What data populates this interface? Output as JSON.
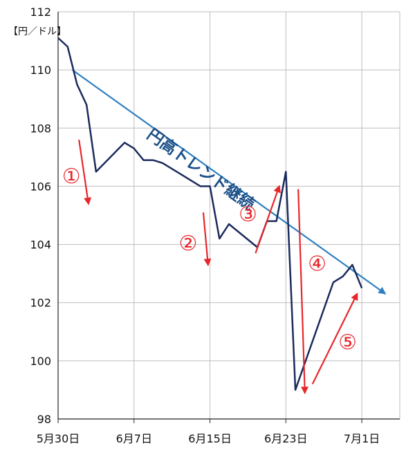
{
  "chart_data": {
    "type": "line",
    "unit_label": "【円／ドル】",
    "ylim": [
      98,
      112
    ],
    "y_ticks": [
      98,
      100,
      102,
      104,
      106,
      108,
      110,
      112
    ],
    "x_ticks": [
      {
        "day": 0,
        "label": "5月30日"
      },
      {
        "day": 8,
        "label": "6月7日"
      },
      {
        "day": 16,
        "label": "6月15日"
      },
      {
        "day": 24,
        "label": "6月23日"
      },
      {
        "day": 32,
        "label": "7月1日"
      }
    ],
    "xlim": [
      0,
      36
    ],
    "grid": true,
    "series": [
      {
        "name": "",
        "color": "#1a2a5c",
        "points": [
          [
            0,
            111.1
          ],
          [
            1,
            110.8
          ],
          [
            2,
            109.5
          ],
          [
            3,
            108.8
          ],
          [
            4,
            106.5
          ],
          [
            7,
            107.5
          ],
          [
            8,
            107.3
          ],
          [
            9,
            106.9
          ],
          [
            10,
            106.9
          ],
          [
            11,
            106.8
          ],
          [
            15,
            106.0
          ],
          [
            16,
            106.0
          ],
          [
            17,
            104.2
          ],
          [
            18,
            104.7
          ],
          [
            21,
            103.9
          ],
          [
            22,
            104.8
          ],
          [
            23,
            104.8
          ],
          [
            24,
            106.5
          ],
          [
            25,
            99.0
          ],
          [
            29,
            102.7
          ],
          [
            30,
            102.9
          ],
          [
            31,
            103.3
          ],
          [
            32,
            102.5
          ]
        ]
      }
    ],
    "trend_arrow": {
      "label": "円高トレンド継続",
      "color": "#2f7fc1",
      "from": [
        1.5,
        110.0
      ],
      "to": [
        34.5,
        102.3
      ]
    },
    "annotations": [
      {
        "label": "①",
        "arrow_from": [
          2.2,
          107.6
        ],
        "arrow_to": [
          3.2,
          105.4
        ],
        "label_pos": [
          1.4,
          106.1
        ]
      },
      {
        "label": "②",
        "arrow_from": [
          15.3,
          105.1
        ],
        "arrow_to": [
          15.8,
          103.3
        ],
        "label_pos": [
          13.7,
          103.8
        ]
      },
      {
        "label": "③",
        "arrow_from": [
          20.8,
          103.7
        ],
        "arrow_to": [
          23.3,
          106.0
        ],
        "label_pos": [
          20.0,
          104.8
        ]
      },
      {
        "label": "④",
        "arrow_from": [
          25.3,
          105.9
        ],
        "arrow_to": [
          26.0,
          98.9
        ],
        "label_pos": [
          27.3,
          103.1
        ]
      },
      {
        "label": "⑤",
        "arrow_from": [
          26.8,
          99.2
        ],
        "arrow_to": [
          31.5,
          102.3
        ],
        "label_pos": [
          30.5,
          100.4
        ]
      }
    ],
    "colors": {
      "axis": "#222222",
      "grid": "#bdbdbd",
      "annotation": "#e8262a"
    }
  }
}
